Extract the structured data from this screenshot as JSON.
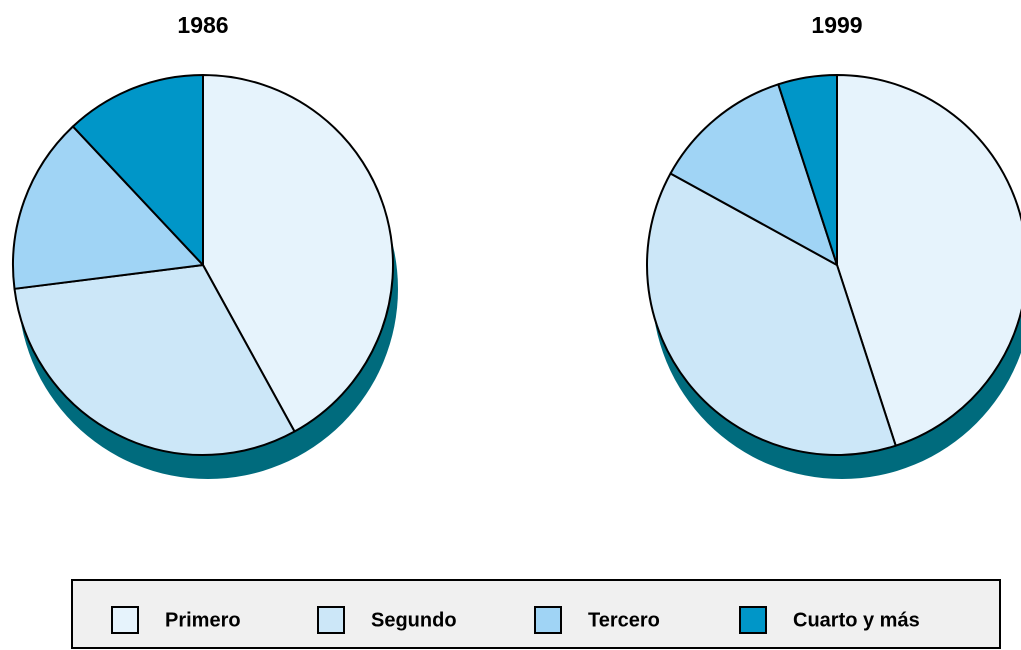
{
  "chart_data": [
    {
      "type": "pie",
      "title": "1986",
      "categories": [
        "Primero",
        "Segundo",
        "Tercero",
        "Cuarto y más"
      ],
      "values": [
        42,
        31,
        15,
        12
      ],
      "colors": [
        "#e6f3fc",
        "#cce7f8",
        "#a0d4f5",
        "#0096c8"
      ]
    },
    {
      "type": "pie",
      "title": "1999",
      "categories": [
        "Primero",
        "Segundo",
        "Tercero",
        "Cuarto y más"
      ],
      "values": [
        45,
        38,
        12,
        5
      ],
      "colors": [
        "#e6f3fc",
        "#cce7f8",
        "#a0d4f5",
        "#0096c8"
      ]
    }
  ]
}
